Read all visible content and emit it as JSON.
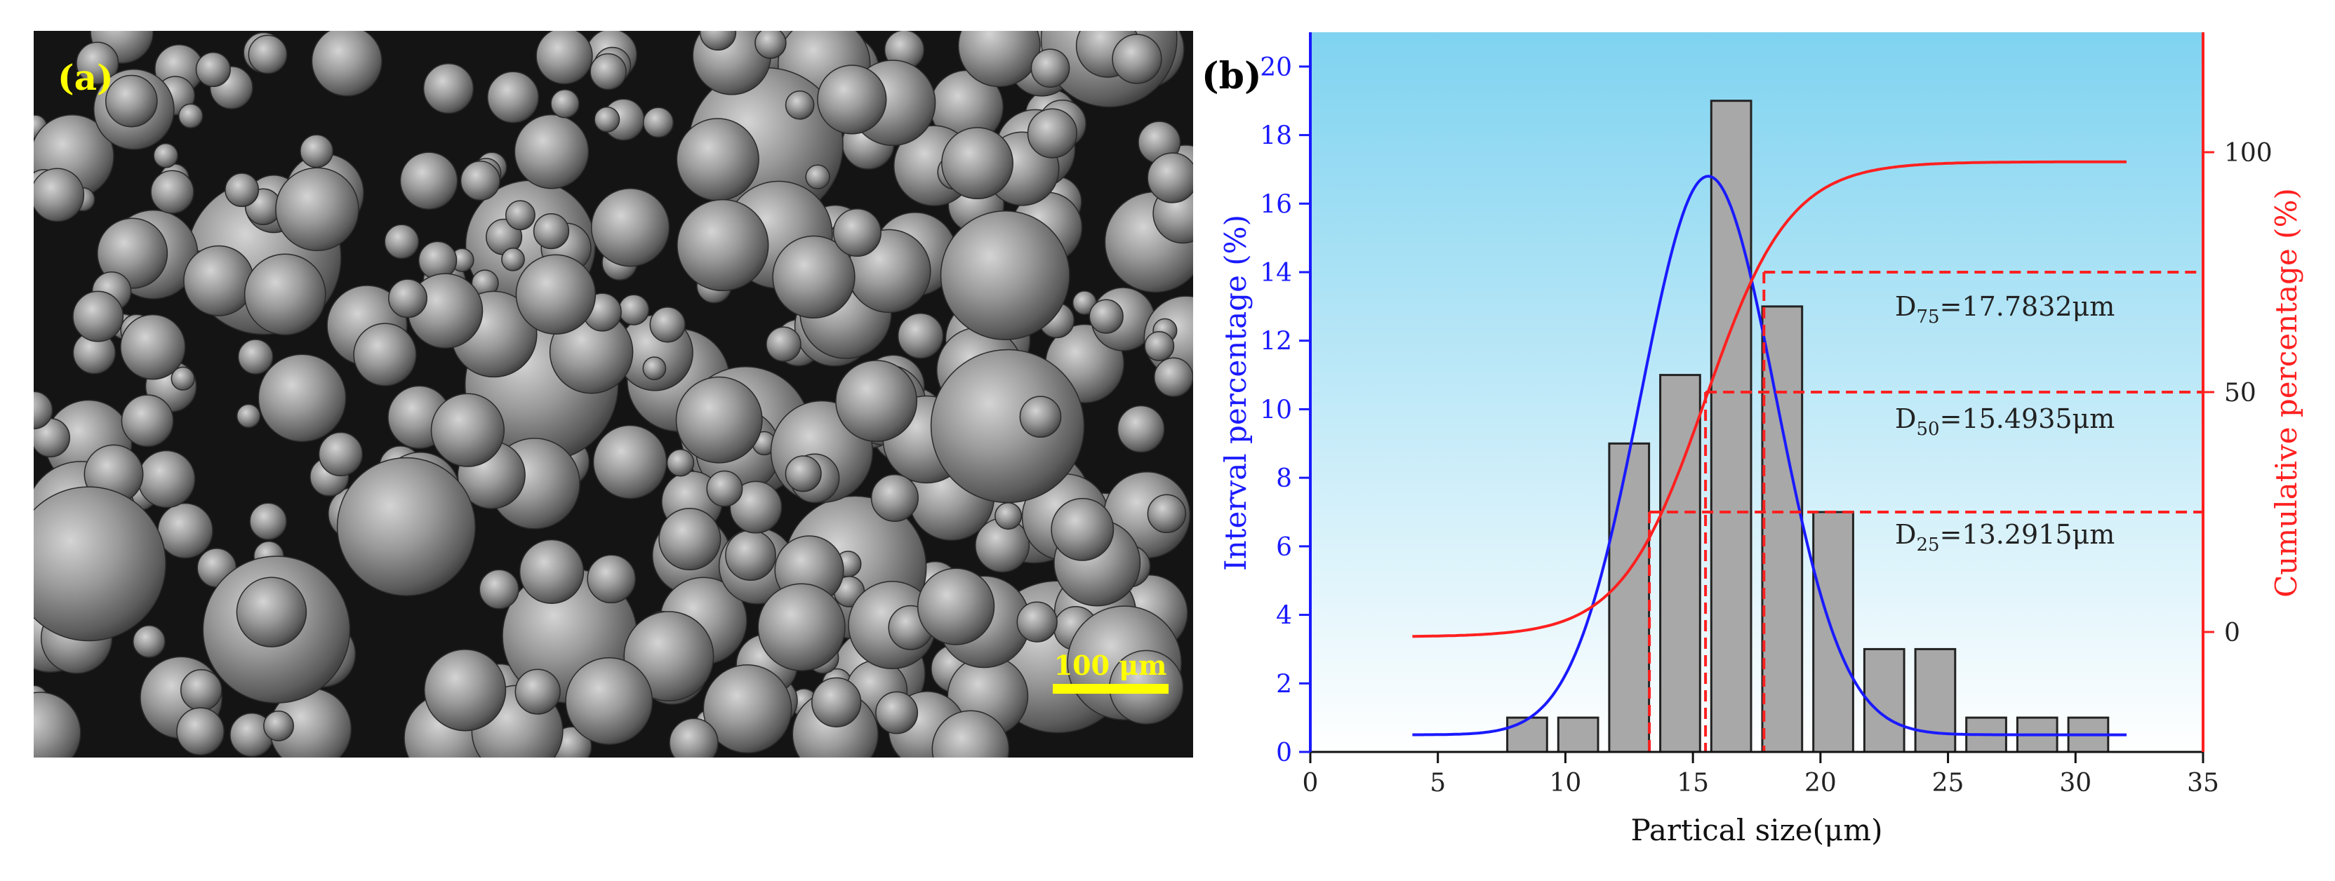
{
  "panel_a": {
    "label": "(a)",
    "scale_bar_label": "100 μm",
    "scale_bar_color": "#ffff00"
  },
  "panel_b": {
    "label": "(b)"
  },
  "colors": {
    "interval_axis": "#1a1aff",
    "cumulative_axis": "#ff2020",
    "bar_fill": "#a8a8a8",
    "plot_bg_top": "#7fd3f0",
    "plot_bg_bottom": "#ffffff"
  },
  "chart_data": {
    "type": "bar",
    "xlabel": "Partical size(μm)",
    "ylabel_left": "Interval percentage (%)",
    "ylabel_right": "Cumulative percentage (%)",
    "xlim": [
      0,
      35
    ],
    "ylim_left": [
      0,
      21
    ],
    "ylim_right": [
      -25,
      125
    ],
    "x_ticks": [
      0,
      5,
      10,
      15,
      20,
      25,
      30,
      35
    ],
    "y_left_ticks": [
      0,
      2,
      4,
      6,
      8,
      10,
      12,
      14,
      16,
      18,
      20
    ],
    "y_right_ticks": [
      0,
      50,
      100
    ],
    "bars": {
      "centers": [
        8.5,
        10.5,
        12.5,
        14.5,
        16.5,
        18.5,
        20.5,
        22.5,
        24.5,
        26.5,
        28.5,
        30.5
      ],
      "values": [
        1,
        1,
        9,
        11,
        19,
        13,
        7,
        3,
        3,
        1,
        1,
        1
      ],
      "bin_width": 2
    },
    "gaussian_fit": {
      "name": "Interval percentage fit",
      "x_range": [
        4,
        32
      ],
      "baseline": 0.5,
      "amplitude": 16.3,
      "center": 15.6,
      "sigma": 2.65
    },
    "cumulative_curve": {
      "name": "Cumulative percentage",
      "x_range": [
        4,
        32
      ],
      "min": -1,
      "max": 98,
      "center": 15.49,
      "width": 1.65
    },
    "percentiles": [
      {
        "label": "D",
        "sub": "25",
        "value_text": "=13.2915μm",
        "x": 13.2915,
        "cumulative": 25
      },
      {
        "label": "D",
        "sub": "50",
        "value_text": "=15.4935μm",
        "x": 15.4935,
        "cumulative": 50
      },
      {
        "label": "D",
        "sub": "75",
        "value_text": "=17.7832μm",
        "x": 17.7832,
        "cumulative": 75
      }
    ]
  }
}
